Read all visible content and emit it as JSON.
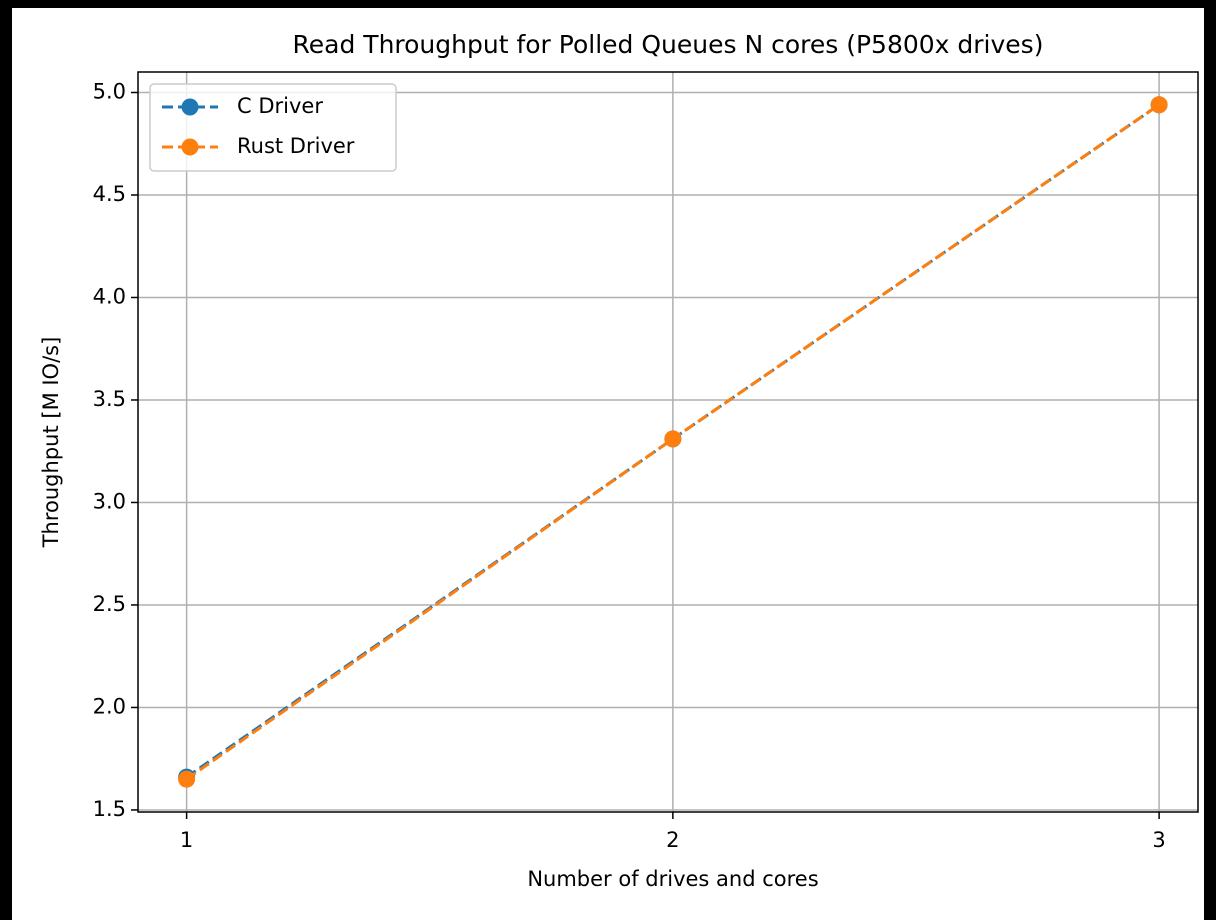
{
  "chart_data": {
    "type": "line",
    "title": "Read Throughput for Polled Queues N cores (P5800x drives)",
    "xlabel": "Number of drives and cores",
    "ylabel": "Throughput [M IO/s]",
    "x": [
      1,
      2,
      3
    ],
    "series": [
      {
        "name": "C Driver",
        "color": "#1f77b4",
        "values": [
          1.66,
          3.31,
          4.94
        ]
      },
      {
        "name": "Rust Driver",
        "color": "#ff7f0e",
        "values": [
          1.65,
          3.31,
          4.94
        ]
      }
    ],
    "xlim": [
      0.9,
      3.08
    ],
    "xticks": [
      1,
      2,
      3
    ],
    "ylim": [
      1.49,
      5.1
    ],
    "yticks": [
      {
        "value": 1.5,
        "label": "1.5"
      },
      {
        "value": 2.0,
        "label": "2.0"
      },
      {
        "value": 2.5,
        "label": "2.5"
      },
      {
        "value": 3.0,
        "label": "3.0"
      },
      {
        "value": 3.5,
        "label": "3.5"
      },
      {
        "value": 4.0,
        "label": "4.0"
      },
      {
        "value": 4.5,
        "label": "4.5"
      },
      {
        "value": 5.0,
        "label": "5.0"
      }
    ],
    "grid": true,
    "legend": "upper left"
  }
}
